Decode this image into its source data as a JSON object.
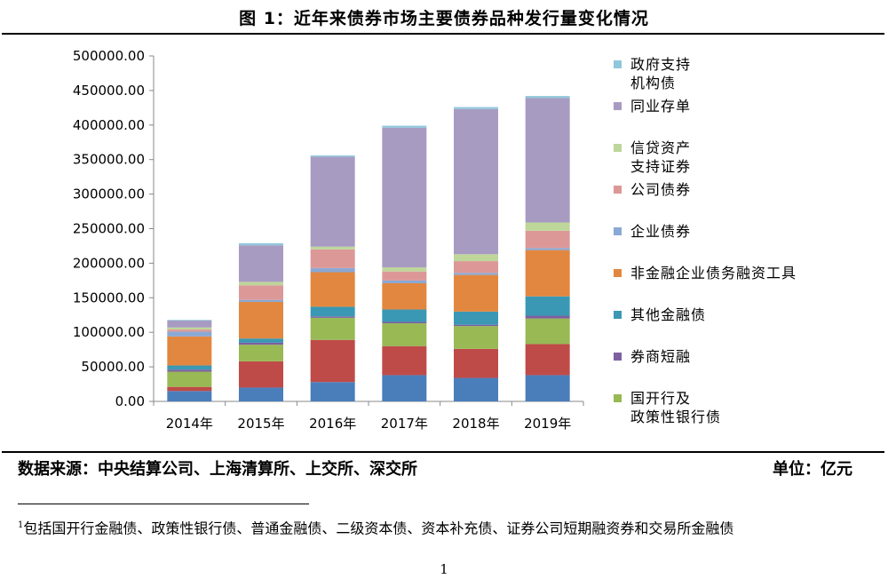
{
  "figure_title": "图 1：近年来债券市场主要债券品种发行量变化情况",
  "source_text": "数据来源：中央结算公司、上海清算所、上交所、深交所",
  "unit_text": "单位：亿元",
  "footnote_mark": "1",
  "footnote_text": "包括国开行金融债、政策性银行债、普通金融债、二级资本债、资本补充债、证券公司短期融资券和交易所金融债",
  "page_number": "1",
  "chart_data": {
    "type": "bar",
    "stacked": true,
    "categories": [
      "2014年",
      "2015年",
      "2016年",
      "2017年",
      "2018年",
      "2019年"
    ],
    "ylim": [
      0,
      500000
    ],
    "yticks": [
      "0.00",
      "50000.00",
      "100000.00",
      "150000.00",
      "200000.00",
      "250000.00",
      "300000.00",
      "350000.00",
      "400000.00",
      "450000.00",
      "500000.00"
    ],
    "grid": false,
    "legend_position": "right",
    "series": [
      {
        "name": "",
        "color": "#4A7EBB",
        "values": [
          15000,
          20000,
          28000,
          38000,
          34000,
          38000
        ]
      },
      {
        "name": "",
        "color": "#BE4B48",
        "values": [
          6000,
          38000,
          61000,
          42000,
          42000,
          45000
        ]
      },
      {
        "name": "国开行及政策性银行债",
        "color": "#98B954",
        "values": [
          22000,
          24000,
          32000,
          33000,
          33000,
          37000
        ]
      },
      {
        "name": "券商短融",
        "color": "#7D60A0",
        "values": [
          3000,
          3000,
          2000,
          2000,
          2000,
          4000
        ]
      },
      {
        "name": "其他金融债",
        "color": "#3A98B4",
        "values": [
          6000,
          6000,
          14000,
          18000,
          19000,
          28000
        ]
      },
      {
        "name": "非金融企业债务融资工具",
        "color": "#E2873F",
        "values": [
          42000,
          53000,
          50000,
          38000,
          53000,
          67000
        ]
      },
      {
        "name": "企业债券",
        "color": "#8AA8D4",
        "values": [
          7000,
          3000,
          6000,
          4000,
          3000,
          3000
        ]
      },
      {
        "name": "公司债券",
        "color": "#DC9897",
        "values": [
          3000,
          21000,
          27000,
          13000,
          17000,
          25000
        ]
      },
      {
        "name": "信贷资产支持证券",
        "color": "#BED69A",
        "values": [
          3000,
          5000,
          4000,
          6000,
          10000,
          12000
        ]
      },
      {
        "name": "同业存单",
        "color": "#A89BC2",
        "values": [
          10000,
          53000,
          130000,
          202000,
          210000,
          180000
        ]
      },
      {
        "name": "政府支持机构债",
        "color": "#91C7DB",
        "values": [
          1000,
          3000,
          2000,
          3000,
          3000,
          3000
        ]
      }
    ],
    "legend": [
      {
        "lines": [
          "政府支持",
          "机构债"
        ],
        "color": "#91C7DB"
      },
      {
        "lines": [
          "同业存单"
        ],
        "color": "#A89BC2"
      },
      {
        "lines": [
          "信贷资产",
          "支持证券"
        ],
        "color": "#BED69A"
      },
      {
        "lines": [
          "公司债券"
        ],
        "color": "#DC9897"
      },
      {
        "lines": [
          "企业债券"
        ],
        "color": "#8AA8D4"
      },
      {
        "lines": [
          "非金融企业债务融资工具"
        ],
        "color": "#E2873F"
      },
      {
        "lines": [
          "其他金融债"
        ],
        "color": "#3A98B4"
      },
      {
        "lines": [
          "券商短融"
        ],
        "color": "#7D60A0"
      },
      {
        "lines": [
          "国开行及",
          "政策性银行债"
        ],
        "color": "#98B954"
      }
    ]
  }
}
